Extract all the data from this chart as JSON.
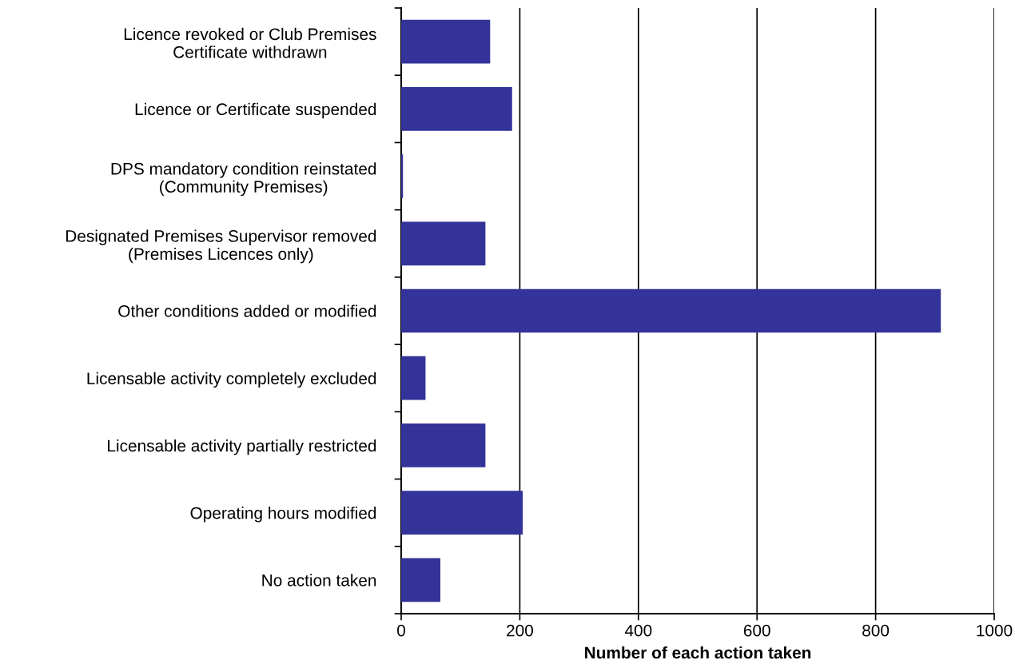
{
  "chart_data": {
    "type": "bar",
    "orientation": "horizontal",
    "xlabel": "Number of each action taken",
    "categories": [
      "Licence revoked or Club Premises\nCertificate withdrawn",
      "Licence or Certificate suspended",
      "DPS mandatory condition reinstated\n(Community Premises)",
      "Designated Premises Supervisor removed\n(Premises Licences only)",
      "Other conditions added or modified",
      "Licensable activity completely excluded",
      "Licensable activity partially restricted",
      "Operating hours modified",
      "No action taken"
    ],
    "values": [
      150,
      187,
      3,
      142,
      910,
      41,
      142,
      205,
      66
    ],
    "color": "#333399",
    "xlim": [
      0,
      1000
    ],
    "xticks": [
      0,
      200,
      400,
      600,
      800,
      1000
    ],
    "grid": "x",
    "legend": false
  }
}
